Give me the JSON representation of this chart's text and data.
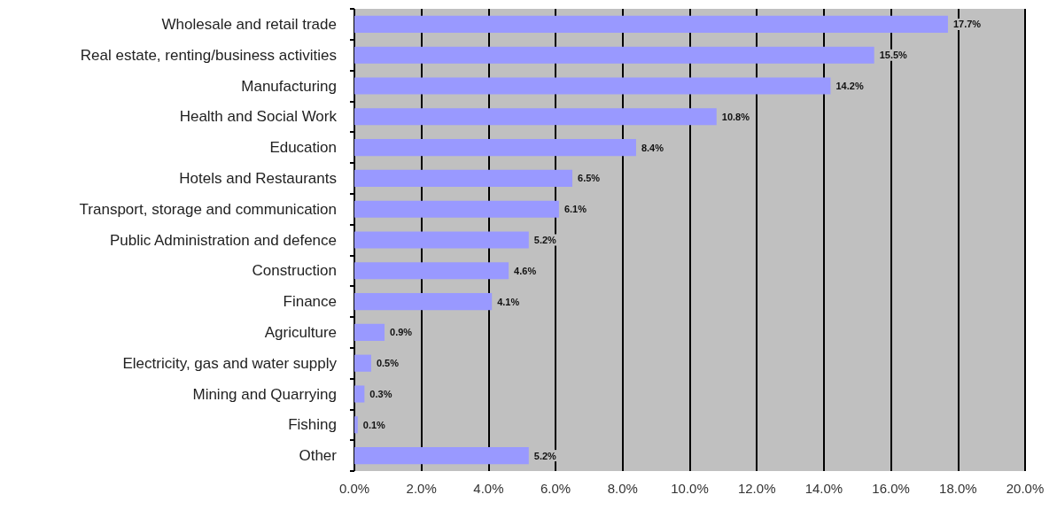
{
  "chart_data": {
    "type": "bar",
    "orientation": "horizontal",
    "categories": [
      "Wholesale and retail trade",
      "Real estate, renting/business activities",
      "Manufacturing",
      "Health and Social Work",
      "Education",
      "Hotels and Restaurants",
      "Transport, storage and communication",
      "Public Administration and defence",
      "Construction",
      "Finance",
      "Agriculture",
      "Electricity, gas and water supply",
      "Mining and Quarrying",
      "Fishing",
      "Other"
    ],
    "values": [
      17.7,
      15.5,
      14.2,
      10.8,
      8.4,
      6.5,
      6.1,
      5.2,
      4.6,
      4.1,
      0.9,
      0.5,
      0.3,
      0.1,
      5.2
    ],
    "value_labels": [
      "17.7%",
      "15.5%",
      "14.2%",
      "10.8%",
      "8.4%",
      "6.5%",
      "6.1%",
      "5.2%",
      "4.6%",
      "4.1%",
      "0.9%",
      "0.5%",
      "0.3%",
      "0.1%",
      "5.2%"
    ],
    "color": "#9999ff",
    "xlim": [
      0,
      20
    ],
    "xticks": [
      {
        "value": 0,
        "label": "0.0%"
      },
      {
        "value": 2,
        "label": "2.0%"
      },
      {
        "value": 4,
        "label": "4.0%"
      },
      {
        "value": 6,
        "label": "6.0%"
      },
      {
        "value": 8,
        "label": "8.0%"
      },
      {
        "value": 10,
        "label": "10.0%"
      },
      {
        "value": 12,
        "label": "12.0%"
      },
      {
        "value": 14,
        "label": "14.0%"
      },
      {
        "value": 16,
        "label": "16.0%"
      },
      {
        "value": 18,
        "label": "18.0%"
      },
      {
        "value": 20,
        "label": "20.0%"
      }
    ],
    "grid": "x"
  }
}
